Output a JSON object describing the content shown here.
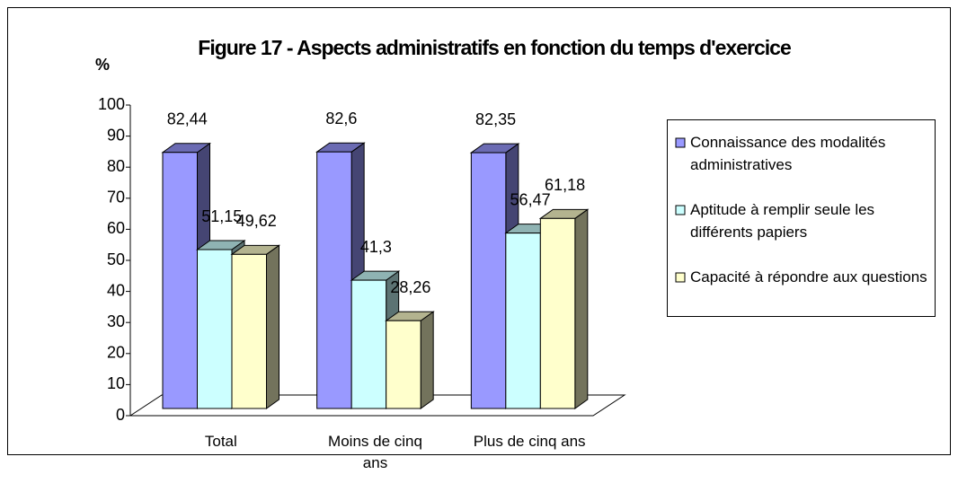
{
  "chart_data": {
    "type": "bar3d",
    "title": "Figure 17 - Aspects administratifs en fonction du temps d'exercice",
    "y_label": "%",
    "categories": [
      "Total",
      "Moins de cinq ans",
      "Plus de cinq ans"
    ],
    "series": [
      {
        "name": "Connaissance des modalités administratives",
        "color": "#9999ff",
        "values": [
          82.44,
          82.6,
          82.35
        ],
        "value_labels": [
          "82,44",
          "82,6",
          "82,35"
        ]
      },
      {
        "name": "Aptitude à remplir seule les différents papiers",
        "color": "#ccffff",
        "values": [
          51.15,
          41.3,
          56.47
        ],
        "value_labels": [
          "51,15",
          "41,3",
          "56,47"
        ]
      },
      {
        "name": "Capacité à répondre aux questions",
        "color": "#ffffcc",
        "values": [
          49.62,
          28.26,
          61.18
        ],
        "value_labels": [
          "49,62",
          "28,26",
          "61,18"
        ]
      }
    ],
    "ylim": [
      0,
      100
    ],
    "yticks": [
      0,
      10,
      20,
      30,
      40,
      50,
      60,
      70,
      80,
      90,
      100
    ],
    "legend": "right"
  }
}
